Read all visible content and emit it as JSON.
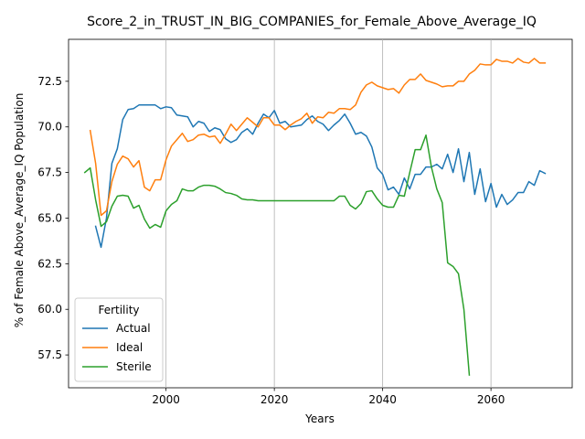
{
  "chart_data": {
    "type": "line",
    "title": "Score_2_in_TRUST_IN_BIG_COMPANIES_for_Female_Above_Average_IQ",
    "xlabel": "Years",
    "ylabel": "% of Female Above_Average_IQ Population",
    "xlim": [
      1982,
      2075
    ],
    "ylim": [
      55.7,
      74.8
    ],
    "xticks": [
      2000,
      2020,
      2040,
      2060
    ],
    "xtick_labels": [
      "2000",
      "2020",
      "2040",
      "2060"
    ],
    "yticks": [
      57.5,
      60.0,
      62.5,
      65.0,
      67.5,
      70.0,
      72.5
    ],
    "ytick_labels": [
      "57.5",
      "60.0",
      "62.5",
      "65.0",
      "67.5",
      "70.0",
      "72.5"
    ],
    "grid": {
      "x": true,
      "y": false
    },
    "legend": {
      "title": "Fertility",
      "placement": "lower-left"
    },
    "series": [
      {
        "name": "Actual",
        "color": "#1f77b4",
        "x": [
          1987,
          1988,
          1989,
          1990,
          1991,
          1992,
          1993,
          1994,
          1995,
          1996,
          1997,
          1998,
          1999,
          2000,
          2001,
          2002,
          2003,
          2004,
          2005,
          2006,
          2007,
          2008,
          2009,
          2010,
          2011,
          2012,
          2013,
          2014,
          2015,
          2016,
          2017,
          2018,
          2019,
          2020,
          2021,
          2022,
          2023,
          2024,
          2025,
          2026,
          2027,
          2028,
          2029,
          2030,
          2031,
          2032,
          2033,
          2034,
          2035,
          2036,
          2037,
          2038,
          2039,
          2040,
          2041,
          2042,
          2043,
          2044,
          2045,
          2046,
          2047,
          2048,
          2049,
          2050,
          2051,
          2052,
          2053,
          2054,
          2055,
          2056,
          2057,
          2058,
          2059,
          2060,
          2061,
          2062,
          2063,
          2064,
          2065,
          2066,
          2067,
          2068,
          2069,
          2070
        ],
        "y": [
          64.55,
          63.4,
          65.0,
          68.0,
          68.8,
          70.4,
          70.95,
          71.0,
          71.2,
          71.2,
          71.2,
          71.2,
          71.0,
          71.1,
          71.05,
          70.65,
          70.6,
          70.55,
          70.0,
          70.3,
          70.2,
          69.75,
          69.95,
          69.85,
          69.35,
          69.15,
          69.3,
          69.7,
          69.9,
          69.6,
          70.2,
          70.7,
          70.5,
          70.9,
          70.2,
          70.3,
          70.0,
          70.05,
          70.1,
          70.4,
          70.6,
          70.3,
          70.15,
          69.8,
          70.1,
          70.35,
          70.7,
          70.2,
          69.6,
          69.7,
          69.5,
          68.9,
          67.75,
          67.4,
          66.55,
          66.7,
          66.3,
          67.2,
          66.6,
          67.4,
          67.4,
          67.8,
          67.8,
          67.95,
          67.7,
          68.5,
          67.5,
          68.8,
          67.0,
          68.6,
          66.3,
          67.7,
          65.9,
          66.9,
          65.6,
          66.3,
          65.75,
          66.0,
          66.4,
          66.4,
          67.0,
          66.8,
          67.6,
          67.45
        ]
      },
      {
        "name": "Ideal",
        "color": "#ff7f0e",
        "x": [
          1986,
          1987,
          1988,
          1989,
          1990,
          1991,
          1992,
          1993,
          1994,
          1995,
          1996,
          1997,
          1998,
          1999,
          2000,
          2001,
          2002,
          2003,
          2004,
          2005,
          2006,
          2007,
          2008,
          2009,
          2010,
          2011,
          2012,
          2013,
          2014,
          2015,
          2016,
          2017,
          2018,
          2019,
          2020,
          2021,
          2022,
          2023,
          2024,
          2025,
          2026,
          2027,
          2028,
          2029,
          2030,
          2031,
          2032,
          2033,
          2034,
          2035,
          2036,
          2037,
          2038,
          2039,
          2040,
          2041,
          2042,
          2043,
          2044,
          2045,
          2046,
          2047,
          2048,
          2049,
          2050,
          2051,
          2052,
          2053,
          2054,
          2055,
          2056,
          2057,
          2058,
          2059,
          2060,
          2061,
          2062,
          2063,
          2064,
          2065,
          2066,
          2067,
          2068,
          2069,
          2070
        ],
        "y": [
          69.8,
          68.0,
          65.15,
          65.4,
          67.0,
          67.95,
          68.4,
          68.25,
          67.8,
          68.15,
          66.7,
          66.5,
          67.1,
          67.1,
          68.2,
          68.95,
          69.3,
          69.65,
          69.2,
          69.3,
          69.55,
          69.6,
          69.45,
          69.5,
          69.1,
          69.6,
          70.15,
          69.8,
          70.15,
          70.5,
          70.25,
          70.0,
          70.5,
          70.5,
          70.1,
          70.1,
          69.85,
          70.1,
          70.3,
          70.45,
          70.75,
          70.2,
          70.55,
          70.5,
          70.8,
          70.75,
          71.0,
          71.0,
          70.95,
          71.2,
          71.9,
          72.3,
          72.45,
          72.25,
          72.15,
          72.05,
          72.1,
          71.85,
          72.3,
          72.6,
          72.6,
          72.9,
          72.55,
          72.45,
          72.35,
          72.2,
          72.25,
          72.25,
          72.5,
          72.5,
          72.9,
          73.1,
          73.45,
          73.4,
          73.4,
          73.7,
          73.6,
          73.6,
          73.5,
          73.75,
          73.55,
          73.5,
          73.75,
          73.5,
          73.5
        ]
      },
      {
        "name": "Sterile",
        "color": "#2ca02c",
        "x": [
          1985,
          1986,
          1987,
          1988,
          1989,
          1990,
          1991,
          1992,
          1993,
          1994,
          1995,
          1996,
          1997,
          1998,
          1999,
          2000,
          2001,
          2002,
          2003,
          2004,
          2005,
          2006,
          2007,
          2008,
          2009,
          2010,
          2011,
          2012,
          2013,
          2014,
          2015,
          2016,
          2017,
          2018,
          2019,
          2020,
          2021,
          2022,
          2023,
          2024,
          2025,
          2026,
          2027,
          2028,
          2029,
          2030,
          2031,
          2032,
          2033,
          2034,
          2035,
          2036,
          2037,
          2038,
          2039,
          2040,
          2041,
          2042,
          2043,
          2044,
          2045,
          2046,
          2047,
          2048,
          2049,
          2050,
          2051,
          2052,
          2053,
          2054,
          2055,
          2056
        ],
        "y": [
          67.5,
          67.75,
          66.0,
          64.55,
          64.8,
          65.65,
          66.2,
          66.25,
          66.2,
          65.55,
          65.7,
          64.95,
          64.45,
          64.65,
          64.5,
          65.4,
          65.75,
          65.95,
          66.6,
          66.5,
          66.5,
          66.7,
          66.8,
          66.8,
          66.75,
          66.6,
          66.4,
          66.35,
          66.25,
          66.05,
          66.0,
          66.0,
          65.95,
          65.95,
          65.95,
          65.95,
          65.95,
          65.95,
          65.95,
          65.95,
          65.95,
          65.95,
          65.95,
          65.95,
          65.95,
          65.95,
          65.95,
          66.2,
          66.2,
          65.7,
          65.5,
          65.8,
          66.45,
          66.5,
          66.05,
          65.7,
          65.6,
          65.6,
          66.25,
          66.2,
          67.5,
          68.75,
          68.75,
          69.55,
          67.8,
          66.6,
          65.85,
          62.55,
          62.35,
          61.95,
          60.0,
          56.4
        ]
      }
    ]
  }
}
